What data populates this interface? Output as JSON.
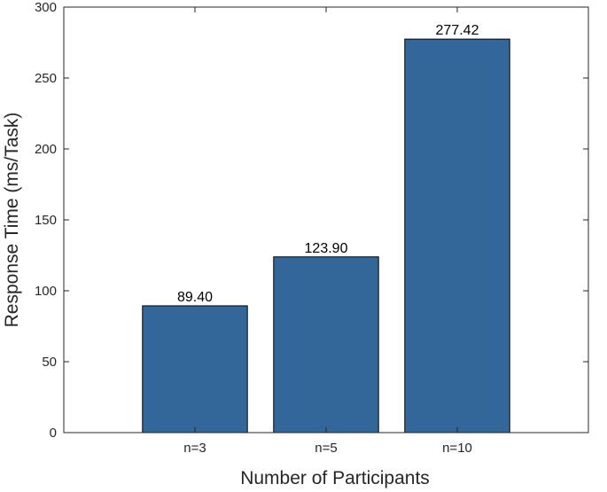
{
  "chart_data": {
    "type": "bar",
    "title": "",
    "xlabel": "Number of Participants",
    "ylabel": "Response Time (ms/Task)",
    "categories": [
      "n=3",
      "n=5",
      "n=10"
    ],
    "values": [
      89.4,
      123.9,
      277.42
    ],
    "value_labels": [
      "89.40",
      "123.90",
      "277.42"
    ],
    "ylim": [
      0,
      300
    ],
    "yticks": [
      0,
      50,
      100,
      150,
      200,
      250,
      300
    ],
    "xlim": [
      0,
      4
    ],
    "grid": false,
    "legend": "none",
    "bar_color": "#336699",
    "bar_edge_color": "#000000"
  }
}
